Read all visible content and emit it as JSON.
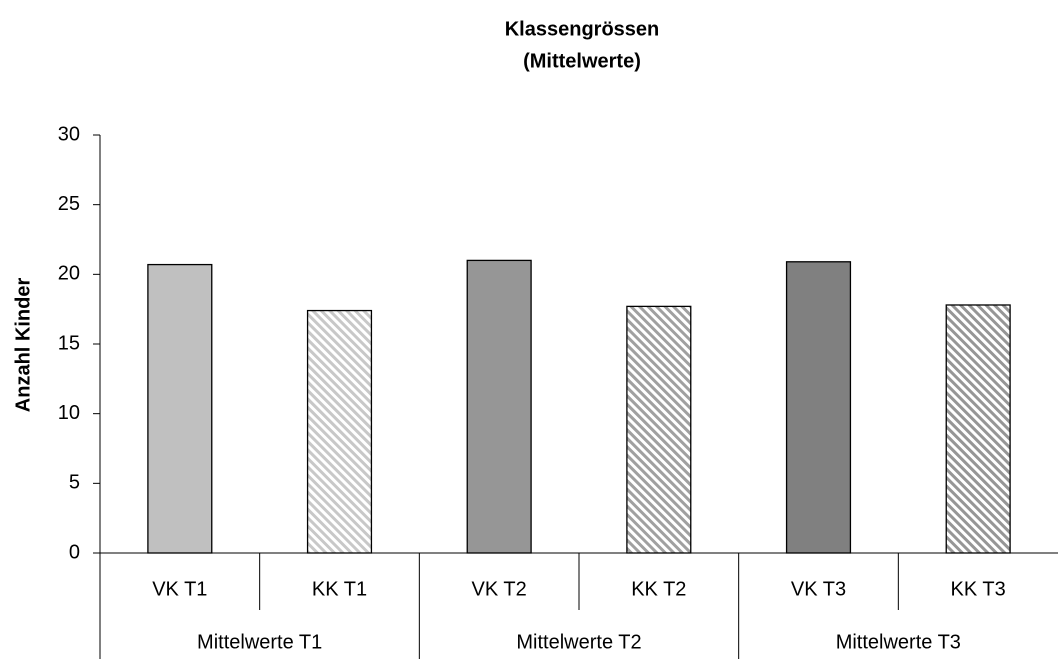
{
  "chart_data": {
    "type": "bar",
    "title": [
      "Klassengrössen",
      "(Mittelwerte)"
    ],
    "ylabel": "Anzahl Kinder",
    "categories": [
      "VK T1",
      "KK T1",
      "VK T2",
      "KK T2",
      "VK T3",
      "KK T3"
    ],
    "groups": [
      "Mittelwerte T1",
      "Mittelwerte T2",
      "Mittelwerte T3"
    ],
    "values": [
      20.7,
      17.4,
      21.0,
      17.7,
      20.9,
      17.8
    ],
    "colors": [
      "#c0c0c0",
      "#c8c8c8",
      "#969696",
      "#a0a0a0",
      "#808080",
      "#969696"
    ],
    "patterns": [
      "solid",
      "hatch",
      "solid",
      "hatch",
      "solid",
      "hatch"
    ],
    "ylim": [
      0,
      30
    ],
    "yticks": [
      0,
      5,
      10,
      15,
      20,
      25,
      30
    ],
    "grid": false
  }
}
